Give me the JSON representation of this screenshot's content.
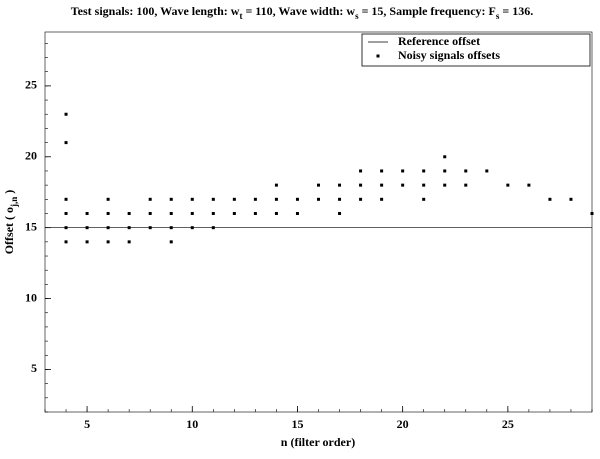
{
  "chart_data": {
    "type": "scatter",
    "title": [
      "Test signals: 100, Wave length: w",
      "t",
      " = 110, Wave width: w",
      "s",
      " = 15, Sample frequency: F",
      "s",
      " = 136."
    ],
    "xlabel": [
      "n (filter order)"
    ],
    "ylabel": [
      "Offset ( o",
      "j,n",
      " )"
    ],
    "xlim": [
      3,
      29
    ],
    "ylim": [
      2,
      28.8
    ],
    "xticks": [
      5,
      10,
      15,
      20,
      25
    ],
    "yticks": [
      5,
      10,
      15,
      20,
      25
    ],
    "reference": {
      "name": "Reference offset",
      "value": 15,
      "color": "#000000"
    },
    "series": [
      {
        "name": "Noisy signals offsets",
        "color": "#000000",
        "x": [
          4,
          4,
          4,
          4,
          4,
          4,
          5,
          5,
          5,
          6,
          6,
          6,
          6,
          7,
          7,
          7,
          8,
          8,
          8,
          9,
          9,
          9,
          9,
          10,
          10,
          10,
          11,
          11,
          11,
          12,
          12,
          13,
          13,
          14,
          14,
          14,
          15,
          15,
          16,
          16,
          17,
          17,
          17,
          18,
          18,
          18,
          19,
          19,
          19,
          20,
          20,
          21,
          21,
          21,
          22,
          22,
          22,
          23,
          23,
          24,
          25,
          26,
          27,
          28,
          29
        ],
        "values": [
          23,
          21,
          17,
          16,
          15,
          14,
          16,
          15,
          14,
          17,
          16,
          15,
          14,
          16,
          15,
          14,
          17,
          16,
          15,
          17,
          16,
          15,
          14,
          17,
          16,
          15,
          17,
          16,
          15,
          17,
          16,
          17,
          16,
          18,
          17,
          16,
          17,
          16,
          18,
          17,
          18,
          17,
          16,
          19,
          18,
          17,
          19,
          18,
          17,
          19,
          18,
          19,
          18,
          17,
          20,
          19,
          18,
          19,
          18,
          19,
          18,
          18,
          17,
          17,
          16
        ]
      }
    ]
  }
}
